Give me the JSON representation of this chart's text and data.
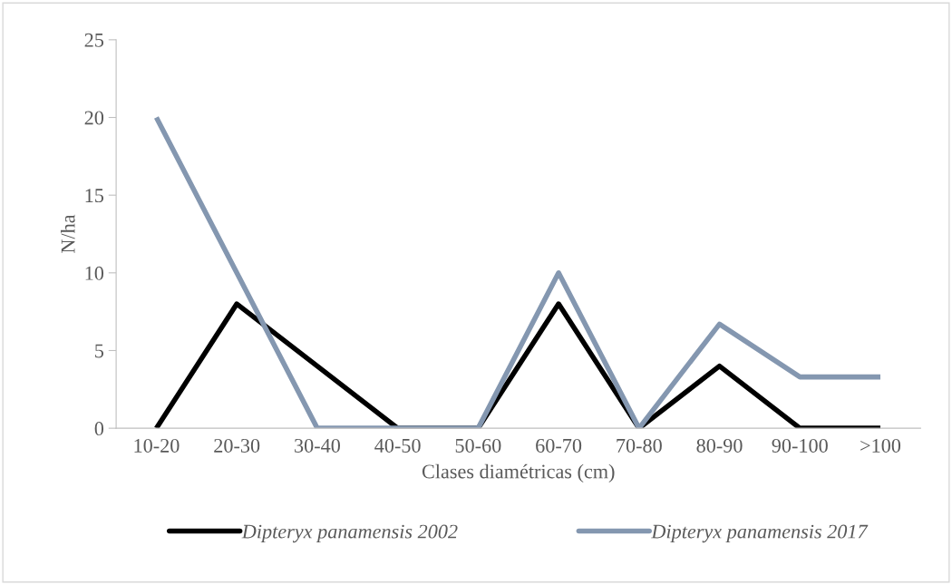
{
  "chart_data": {
    "type": "line",
    "xlabel": "Clases diamétricas (cm)",
    "ylabel": "N/ha",
    "categories": [
      "10-20",
      "20-30",
      "30-40",
      "40-50",
      "50-60",
      "60-70",
      "70-80",
      "80-90",
      "90-100",
      ">100"
    ],
    "series": [
      {
        "name": "Dipteryx panamensis 2002",
        "color": "#000000",
        "values": [
          0,
          8,
          4,
          0,
          0,
          8,
          0,
          4,
          0,
          0
        ]
      },
      {
        "name": "Dipteryx panamensis 2017",
        "color": "#8497b0",
        "values": [
          20,
          10,
          0,
          0,
          0,
          10,
          0,
          6.7,
          3.3,
          3.3
        ]
      }
    ],
    "ylim": [
      0,
      25
    ],
    "yticks": [
      0,
      5,
      10,
      15,
      20,
      25
    ],
    "grid": false,
    "legend": "bottom",
    "marker": "none",
    "line_style": "solid"
  }
}
